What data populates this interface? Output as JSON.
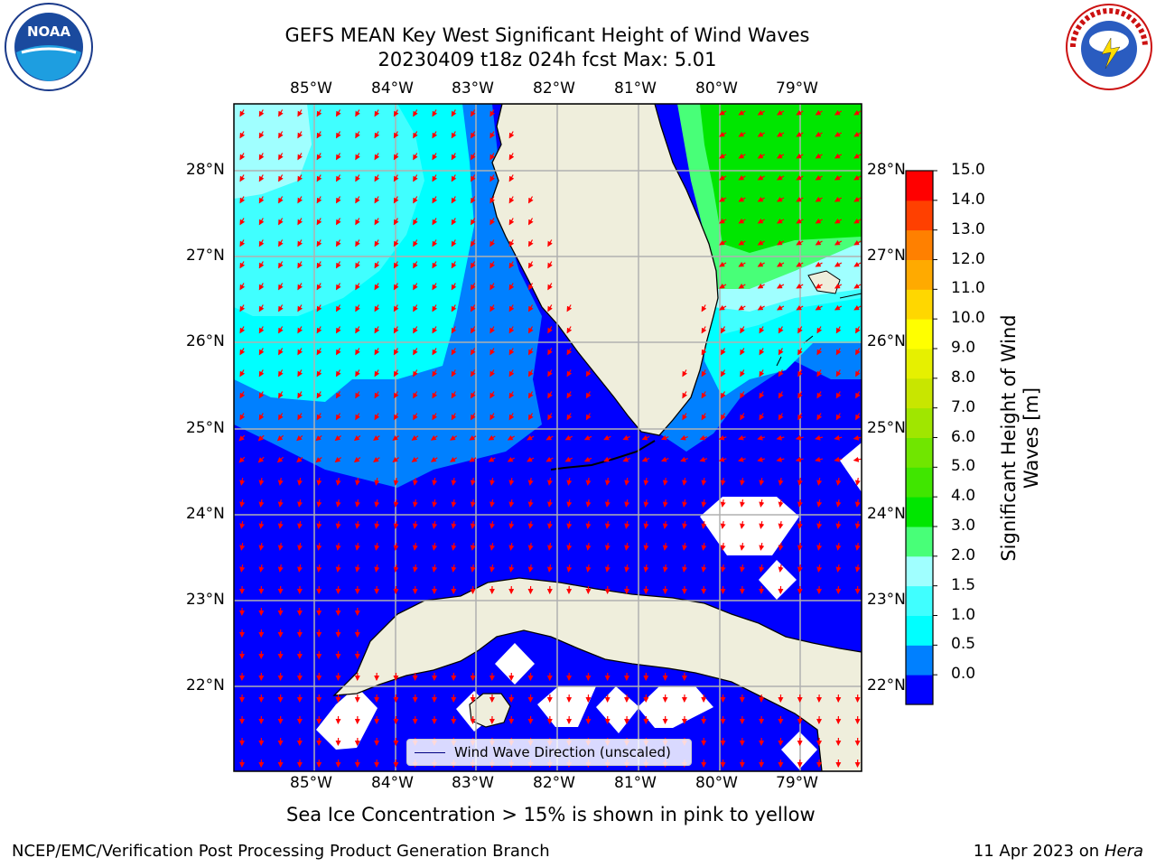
{
  "header": {
    "title_line1": "GEFS MEAN Key West Significant Height of Wind Waves",
    "title_line2": "20230409 t18z 024h fcst   Max: 5.01"
  },
  "map": {
    "lon_labels": [
      "85°W",
      "84°W",
      "83°W",
      "82°W",
      "81°W",
      "80°W",
      "79°W"
    ],
    "lat_labels": [
      "28°N",
      "27°N",
      "26°N",
      "25°N",
      "24°N",
      "23°N",
      "22°N"
    ],
    "lon_range": [
      -86.0,
      -78.3
    ],
    "lat_range": [
      21.1,
      28.8
    ],
    "land_color": "#efeedc",
    "arrow_color": "#ff0000",
    "legend_label": "Wind Wave Direction (unscaled)"
  },
  "colorbar": {
    "ticks": [
      "15.0",
      "14.0",
      "13.0",
      "12.0",
      "11.0",
      "10.0",
      "9.0",
      "8.0",
      "7.0",
      "6.0",
      "5.0",
      "4.0",
      "3.0",
      "2.0",
      "1.5",
      "1.0",
      "0.5",
      "0.0"
    ],
    "colors_bottom_to_top": [
      "#0000ff",
      "#0080ff",
      "#00ffff",
      "#40ffff",
      "#a0ffff",
      "#48ff78",
      "#00e600",
      "#40e600",
      "#70e600",
      "#a0e600",
      "#c8e600",
      "#e6f000",
      "#ffff00",
      "#ffd700",
      "#ffaa00",
      "#ff8000",
      "#ff4000",
      "#ff0000"
    ],
    "label": "Significant Height of Wind Waves [m]"
  },
  "footer": {
    "sea_ice_note": "Sea Ice Concentration > 15% is shown in pink to yellow",
    "credit": "NCEP/EMC/Verification Post Processing Product Generation Branch",
    "date_text": "11 Apr 2023 on ",
    "machine": "Hera"
  },
  "logos": {
    "noaa_text": "NOAA",
    "nws_text": "NATIONAL WEATHER SERVICE"
  }
}
